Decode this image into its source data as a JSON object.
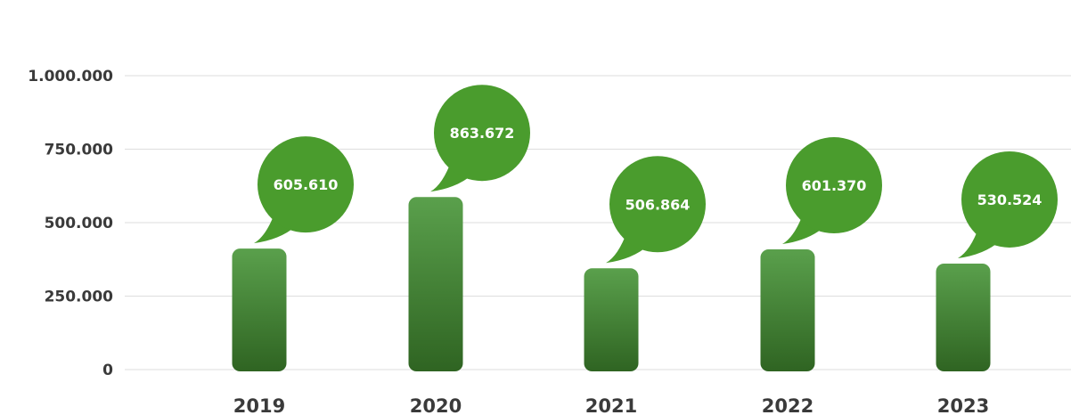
{
  "chart_data": {
    "type": "bar",
    "categories": [
      "2019",
      "2020",
      "2021",
      "2022",
      "2023"
    ],
    "values": [
      605610,
      863672,
      506864,
      601370,
      530524
    ],
    "data_labels": [
      "605.610",
      "863.672",
      "506.864",
      "601.370",
      "530.524"
    ],
    "y_ticks": [
      {
        "value": 0,
        "label": "0"
      },
      {
        "value": 250000,
        "label": "250.000"
      },
      {
        "value": 500000,
        "label": "500.000"
      },
      {
        "value": 750000,
        "label": "750.000"
      },
      {
        "value": 1000000,
        "label": "1.000.000"
      }
    ],
    "ylim": [
      0,
      1000000
    ],
    "title": "",
    "xlabel": "",
    "ylabel": "",
    "grid": true,
    "colors": {
      "bar_top": "#5aa04c",
      "bar_bottom": "#2f6422",
      "bubble": "#4a9c2d",
      "grid": "#dedede",
      "text": "#3a3a3a"
    }
  }
}
